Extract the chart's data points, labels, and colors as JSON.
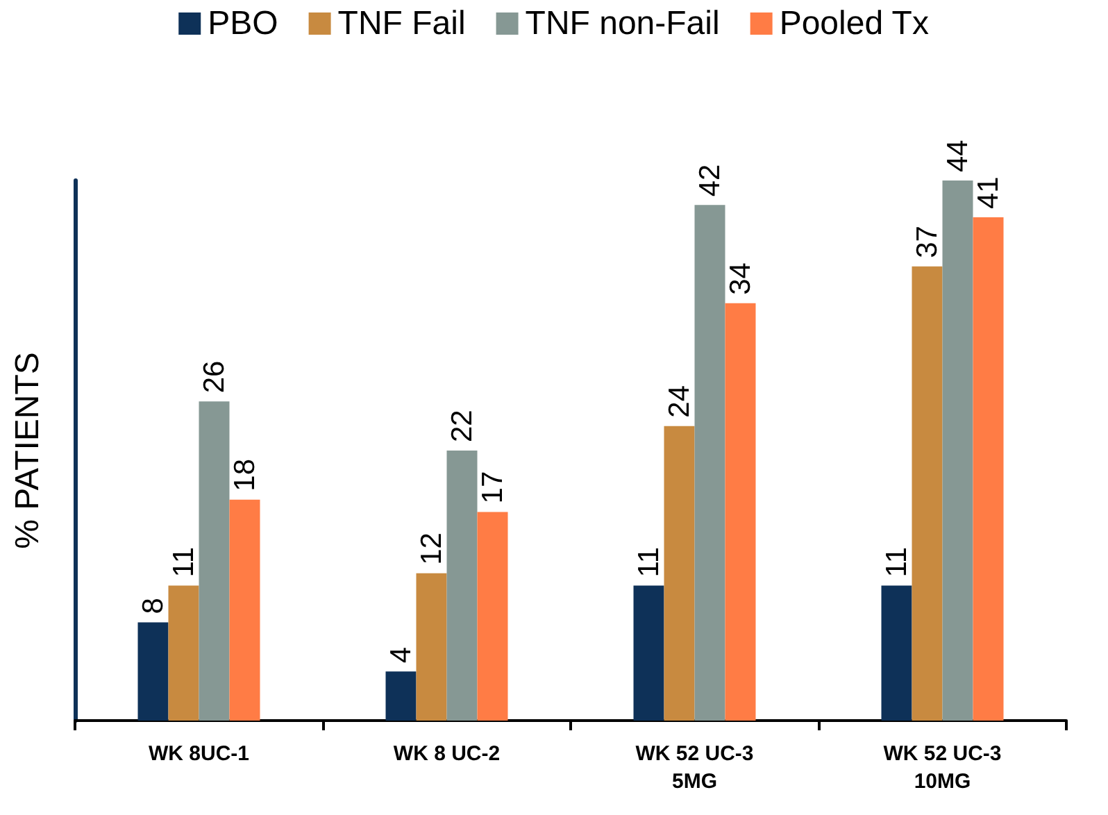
{
  "chart_data": {
    "type": "bar",
    "ylabel": "% PATIENTS",
    "categories": [
      "WK 8UC-1",
      "WK 8 UC-2",
      "WK 52 UC-3\n5MG",
      "WK 52 UC-3\n10MG"
    ],
    "series": [
      {
        "name": "PBO",
        "color": "#0e3158",
        "values": [
          8,
          4,
          11,
          11
        ]
      },
      {
        "name": "TNF Fail",
        "color": "#c88a40",
        "values": [
          11,
          12,
          24,
          37
        ]
      },
      {
        "name": "TNF non-Fail",
        "color": "#869894",
        "values": [
          26,
          22,
          42,
          44
        ]
      },
      {
        "name": "Pooled Tx",
        "color": "#ff7c45",
        "values": [
          18,
          17,
          34,
          41
        ]
      }
    ],
    "data_labels": true,
    "legend": "top",
    "grid": false,
    "tick_labels": "x"
  }
}
